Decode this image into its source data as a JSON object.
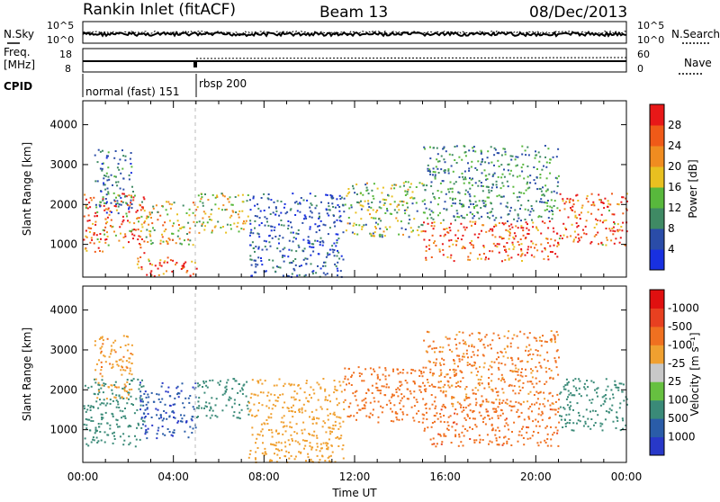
{
  "header": {
    "station": "Rankin Inlet (fitACF)",
    "beam": "Beam 13",
    "date": "08/Dec/2013"
  },
  "top_panels": {
    "noise": {
      "left_label": "N.Sky",
      "right_label": "N.Search",
      "left_ticks": [
        "10^5",
        "10^0"
      ],
      "right_ticks": [
        "10^5",
        "10^0"
      ]
    },
    "freq": {
      "left_label_1": "Freq.",
      "left_label_2": "[MHz]",
      "right_label": "Nave",
      "left_ticks": [
        "18",
        "8"
      ],
      "right_ticks": [
        "60",
        "0"
      ]
    },
    "cpid": {
      "label": "CPID",
      "modes": [
        "normal (fast) 151",
        "rbsp 200"
      ]
    }
  },
  "x_axis": {
    "ticks": [
      "00:00",
      "04:00",
      "08:00",
      "12:00",
      "16:00",
      "20:00",
      "00:00"
    ],
    "label": "Time UT"
  },
  "chart_data": [
    {
      "type": "heatmap",
      "title": "",
      "xlabel": "Time UT",
      "ylabel": "Slant Range [km]",
      "xlim": [
        0,
        24
      ],
      "ylim": [
        180,
        4600
      ],
      "y_ticks": [
        1000,
        2000,
        3000,
        4000
      ],
      "colorbar": {
        "label": "Power [dB]",
        "ticks": [
          "4",
          "8",
          "12",
          "16",
          "20",
          "24",
          "28"
        ],
        "colors": [
          "#1830e0",
          "#2a4ca8",
          "#3f8a64",
          "#58b83c",
          "#e8c020",
          "#f08c20",
          "#f05a18",
          "#e81818"
        ]
      },
      "regions": [
        {
          "t": [
            0.0,
            2.7
          ],
          "r": [
            800,
            2300
          ],
          "value": 24
        },
        {
          "t": [
            0.5,
            2.2
          ],
          "r": [
            1800,
            3400
          ],
          "value": 8
        },
        {
          "t": [
            2.3,
            5.0
          ],
          "r": [
            200,
            700
          ],
          "value": 26
        },
        {
          "t": [
            2.5,
            5.0
          ],
          "r": [
            1000,
            2100
          ],
          "value": 18
        },
        {
          "t": [
            5.0,
            7.3
          ],
          "r": [
            1300,
            2300
          ],
          "value": 16
        },
        {
          "t": [
            7.3,
            11.5
          ],
          "r": [
            200,
            2300
          ],
          "value": 6
        },
        {
          "t": [
            11.5,
            15.0
          ],
          "r": [
            1200,
            2600
          ],
          "value": 14
        },
        {
          "t": [
            15.0,
            21.0
          ],
          "r": [
            600,
            1600
          ],
          "value": 28
        },
        {
          "t": [
            15.0,
            21.0
          ],
          "r": [
            1600,
            3500
          ],
          "value": 10
        },
        {
          "t": [
            21.0,
            24.0
          ],
          "r": [
            1000,
            2300
          ],
          "value": 26
        }
      ]
    },
    {
      "type": "heatmap",
      "title": "",
      "xlabel": "Time UT",
      "ylabel": "Slant Range [km]",
      "xlim": [
        0,
        24
      ],
      "ylim": [
        180,
        4600
      ],
      "y_ticks": [
        1000,
        2000,
        3000,
        4000
      ],
      "colorbar": {
        "label": "Velocity [m s⁻¹]",
        "ticks": [
          "1000",
          "500",
          "100",
          "25",
          "-25",
          "-100",
          "-500",
          "-1000"
        ],
        "colors": [
          "#2838c8",
          "#2a5ca8",
          "#3a8a78",
          "#66c040",
          "#c8c8c8",
          "#f0a030",
          "#f07020",
          "#e84020",
          "#e01010"
        ]
      },
      "regions": [
        {
          "t": [
            0.0,
            2.7
          ],
          "r": [
            600,
            2300
          ],
          "value": 300
        },
        {
          "t": [
            0.5,
            2.2
          ],
          "r": [
            1800,
            3400
          ],
          "value": -80
        },
        {
          "t": [
            2.5,
            5.0
          ],
          "r": [
            800,
            2200
          ],
          "value": 900
        },
        {
          "t": [
            5.0,
            7.3
          ],
          "r": [
            1300,
            2300
          ],
          "value": 200
        },
        {
          "t": [
            7.3,
            11.5
          ],
          "r": [
            200,
            2300
          ],
          "value": -60
        },
        {
          "t": [
            11.5,
            15.0
          ],
          "r": [
            1200,
            2600
          ],
          "value": -150
        },
        {
          "t": [
            15.0,
            21.0
          ],
          "r": [
            600,
            1700
          ],
          "value": -400
        },
        {
          "t": [
            15.0,
            21.0
          ],
          "r": [
            1600,
            3500
          ],
          "value": -120
        },
        {
          "t": [
            21.0,
            24.0
          ],
          "r": [
            1000,
            2300
          ],
          "value": 250
        }
      ]
    }
  ]
}
